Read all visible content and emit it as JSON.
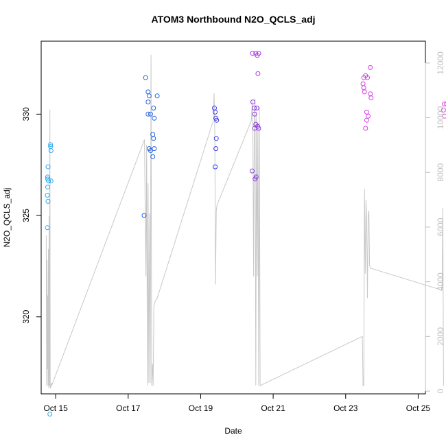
{
  "chart_data": {
    "type": "scatter",
    "title": "ATOM3 Northbound N2O_QCLS_adj",
    "xlabel": "Date",
    "ylabel": "N2O_QCLS_adj",
    "x_tick_labels": [
      "Oct 15",
      "Oct 17",
      "Oct 19",
      "Oct 21",
      "Oct 23",
      "Oct 25"
    ],
    "x_tick_values": [
      15,
      17,
      19,
      21,
      23,
      25
    ],
    "xlim": [
      14.6,
      25.2
    ],
    "ylim": [
      316.2,
      333.6
    ],
    "y_ticks": [
      320,
      325,
      330
    ],
    "y_tick_labels": [
      "320",
      "325",
      "330"
    ],
    "right_axis": {
      "ylim": [
        -100,
        12800
      ],
      "ticks": [
        0,
        2000,
        4000,
        6000,
        8000,
        10000,
        12000
      ],
      "tick_labels": [
        "0",
        "2000",
        "4000",
        "6000",
        "8000",
        "10000",
        "12000"
      ],
      "color": "#bebebe"
    },
    "points": [
      {
        "x": 14.77,
        "y": 324.4,
        "color": "#29a9f0"
      },
      {
        "x": 14.78,
        "y": 326.4,
        "color": "#29a9f0"
      },
      {
        "x": 14.79,
        "y": 325.7,
        "color": "#29a9f0"
      },
      {
        "x": 14.77,
        "y": 326.0,
        "color": "#29a9f0"
      },
      {
        "x": 14.78,
        "y": 326.9,
        "color": "#29a9f0"
      },
      {
        "x": 14.79,
        "y": 327.4,
        "color": "#29a9f0"
      },
      {
        "x": 14.78,
        "y": 326.8,
        "color": "#29a9f0"
      },
      {
        "x": 14.8,
        "y": 326.7,
        "color": "#29a9f0"
      },
      {
        "x": 14.87,
        "y": 326.7,
        "color": "#29a9f0"
      },
      {
        "x": 14.87,
        "y": 328.2,
        "color": "#29a9f0"
      },
      {
        "x": 14.86,
        "y": 328.4,
        "color": "#29a9f0"
      },
      {
        "x": 14.86,
        "y": 328.5,
        "color": "#29a9f0"
      },
      {
        "x": 14.84,
        "y": 315.2,
        "color": "#29a9f0"
      },
      {
        "x": 17.44,
        "y": 325.0,
        "color": "#2060e0"
      },
      {
        "x": 17.48,
        "y": 331.8,
        "color": "#2060e0"
      },
      {
        "x": 17.55,
        "y": 331.1,
        "color": "#2060e0"
      },
      {
        "x": 17.58,
        "y": 330.9,
        "color": "#2060e0"
      },
      {
        "x": 17.55,
        "y": 330.6,
        "color": "#2060e0"
      },
      {
        "x": 17.55,
        "y": 330.0,
        "color": "#2060e0"
      },
      {
        "x": 17.62,
        "y": 330.0,
        "color": "#2060e0"
      },
      {
        "x": 17.7,
        "y": 330.3,
        "color": "#2060e0"
      },
      {
        "x": 17.72,
        "y": 329.8,
        "color": "#2060e0"
      },
      {
        "x": 17.68,
        "y": 329.0,
        "color": "#2060e0"
      },
      {
        "x": 17.7,
        "y": 328.8,
        "color": "#2060e0"
      },
      {
        "x": 17.58,
        "y": 328.3,
        "color": "#2060e0"
      },
      {
        "x": 17.62,
        "y": 328.2,
        "color": "#2060e0"
      },
      {
        "x": 17.72,
        "y": 328.3,
        "color": "#2060e0"
      },
      {
        "x": 17.68,
        "y": 327.9,
        "color": "#2060e0"
      },
      {
        "x": 17.8,
        "y": 330.9,
        "color": "#2060e0"
      },
      {
        "x": 19.4,
        "y": 330.1,
        "color": "#3a36e8"
      },
      {
        "x": 19.38,
        "y": 330.3,
        "color": "#3a36e8"
      },
      {
        "x": 19.42,
        "y": 329.8,
        "color": "#3a36e8"
      },
      {
        "x": 19.44,
        "y": 329.7,
        "color": "#3a36e8"
      },
      {
        "x": 19.43,
        "y": 328.8,
        "color": "#3a36e8"
      },
      {
        "x": 19.42,
        "y": 328.3,
        "color": "#3a36e8"
      },
      {
        "x": 19.4,
        "y": 327.4,
        "color": "#3a36e8"
      },
      {
        "x": 20.43,
        "y": 333.0,
        "color": "#b030e8"
      },
      {
        "x": 20.52,
        "y": 333.0,
        "color": "#b030e8"
      },
      {
        "x": 20.6,
        "y": 333.0,
        "color": "#b030e8"
      },
      {
        "x": 20.56,
        "y": 332.9,
        "color": "#b030e8"
      },
      {
        "x": 20.58,
        "y": 332.0,
        "color": "#b030e8"
      },
      {
        "x": 20.44,
        "y": 330.6,
        "color": "#8c38e0"
      },
      {
        "x": 20.48,
        "y": 330.3,
        "color": "#8c38e0"
      },
      {
        "x": 20.55,
        "y": 330.3,
        "color": "#8c38e0"
      },
      {
        "x": 20.49,
        "y": 330.0,
        "color": "#8c38e0"
      },
      {
        "x": 20.52,
        "y": 329.5,
        "color": "#8c38e0"
      },
      {
        "x": 20.49,
        "y": 329.3,
        "color": "#8c38e0"
      },
      {
        "x": 20.57,
        "y": 329.4,
        "color": "#8c38e0"
      },
      {
        "x": 20.6,
        "y": 329.3,
        "color": "#8c38e0"
      },
      {
        "x": 20.42,
        "y": 327.2,
        "color": "#8c38e0"
      },
      {
        "x": 20.5,
        "y": 326.8,
        "color": "#8c38e0"
      },
      {
        "x": 20.53,
        "y": 326.9,
        "color": "#8c38e0"
      },
      {
        "x": 23.68,
        "y": 332.3,
        "color": "#d838e8"
      },
      {
        "x": 23.55,
        "y": 331.9,
        "color": "#d838e8"
      },
      {
        "x": 23.5,
        "y": 331.8,
        "color": "#d838e8"
      },
      {
        "x": 23.6,
        "y": 331.8,
        "color": "#d838e8"
      },
      {
        "x": 23.48,
        "y": 331.5,
        "color": "#d838e8"
      },
      {
        "x": 23.5,
        "y": 331.3,
        "color": "#d838e8"
      },
      {
        "x": 23.52,
        "y": 331.1,
        "color": "#d838e8"
      },
      {
        "x": 23.68,
        "y": 331.0,
        "color": "#d838e8"
      },
      {
        "x": 23.7,
        "y": 330.8,
        "color": "#d838e8"
      },
      {
        "x": 23.58,
        "y": 330.1,
        "color": "#d838e8"
      },
      {
        "x": 23.62,
        "y": 329.9,
        "color": "#d838e8"
      },
      {
        "x": 23.58,
        "y": 329.7,
        "color": "#d838e8"
      },
      {
        "x": 23.55,
        "y": 329.3,
        "color": "#d838e8"
      },
      {
        "x": 25.72,
        "y": 330.5,
        "color": "#e440e8"
      },
      {
        "x": 25.78,
        "y": 330.5,
        "color": "#e440e8"
      },
      {
        "x": 25.7,
        "y": 330.2,
        "color": "#e440e8"
      },
      {
        "x": 25.73,
        "y": 329.9,
        "color": "#e440e8"
      }
    ],
    "altitude_line": {
      "axis": "right",
      "color": "#c8c8c8",
      "x": [
        14.74,
        14.75,
        14.76,
        14.77,
        14.78,
        14.79,
        14.8,
        14.81,
        14.82,
        14.83,
        14.84,
        14.85,
        14.86,
        14.87,
        14.88,
        14.89,
        17.45,
        17.47,
        17.49,
        17.51,
        17.53,
        17.55,
        17.57,
        17.59,
        17.61,
        17.63,
        17.65,
        17.67,
        17.69,
        17.71,
        17.73,
        17.75,
        17.8,
        19.35,
        19.37,
        19.39,
        19.41,
        19.43,
        19.45,
        20.4,
        20.42,
        20.44,
        20.46,
        20.48,
        20.5,
        20.52,
        20.54,
        20.56,
        20.58,
        20.6,
        20.62,
        20.64,
        23.46,
        23.48,
        23.5,
        23.52,
        23.54,
        23.56,
        23.58,
        23.6,
        23.62,
        23.64,
        23.66,
        23.68,
        25.64,
        25.66,
        25.68,
        25.7
      ],
      "y": [
        5700,
        200,
        4800,
        800,
        3500,
        200,
        5200,
        100,
        6400,
        200,
        10300,
        150,
        120,
        200,
        300,
        200,
        9200,
        6600,
        4200,
        9000,
        200,
        7600,
        300,
        6500,
        300,
        12300,
        200,
        1000,
        200,
        3100,
        3200,
        3300,
        3400,
        9900,
        10900,
        9400,
        3900,
        6600,
        6800,
        9900,
        10600,
        9700,
        4200,
        9800,
        10700,
        200,
        10200,
        4200,
        9800,
        200,
        10400,
        200,
        2000,
        200,
        200,
        7400,
        4300,
        7000,
        6200,
        3400,
        6400,
        6600,
        4600,
        4500,
        3700,
        3700,
        6700,
        200
      ]
    }
  }
}
